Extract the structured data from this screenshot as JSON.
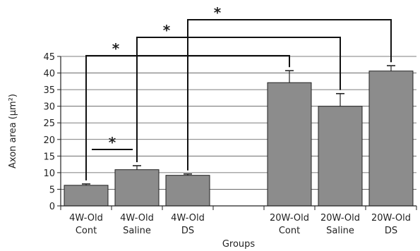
{
  "chart_data": {
    "type": "bar",
    "xlabel": "Groups",
    "ylabel": "Axon area (µm²)",
    "ylim": [
      0,
      45
    ],
    "yticks": [
      0,
      5,
      10,
      15,
      20,
      25,
      30,
      35,
      40,
      45
    ],
    "grid": true,
    "bar_color": "#8c8c8c",
    "categories": [
      {
        "line1": "4W-Old",
        "line2": "Cont"
      },
      {
        "line1": "4W-Old",
        "line2": "Saline"
      },
      {
        "line1": "4W-Old",
        "line2": "DS"
      },
      {
        "line1": "",
        "line2": ""
      },
      {
        "line1": "20W-Old",
        "line2": "Cont"
      },
      {
        "line1": "20W-Old",
        "line2": "Saline"
      },
      {
        "line1": "20W-Old",
        "line2": "DS"
      }
    ],
    "values": [
      6.2,
      10.9,
      9.2,
      null,
      37.1,
      30.0,
      40.6
    ],
    "errors": [
      0.4,
      1.2,
      0.4,
      null,
      3.6,
      3.8,
      1.6
    ],
    "significance": [
      {
        "from": 0,
        "to": 4,
        "label": "*"
      },
      {
        "from": 1,
        "to": 5,
        "label": "*"
      },
      {
        "from": 2,
        "to": 6,
        "label": "*"
      },
      {
        "from": 0,
        "to": 1,
        "label": "*"
      }
    ]
  }
}
